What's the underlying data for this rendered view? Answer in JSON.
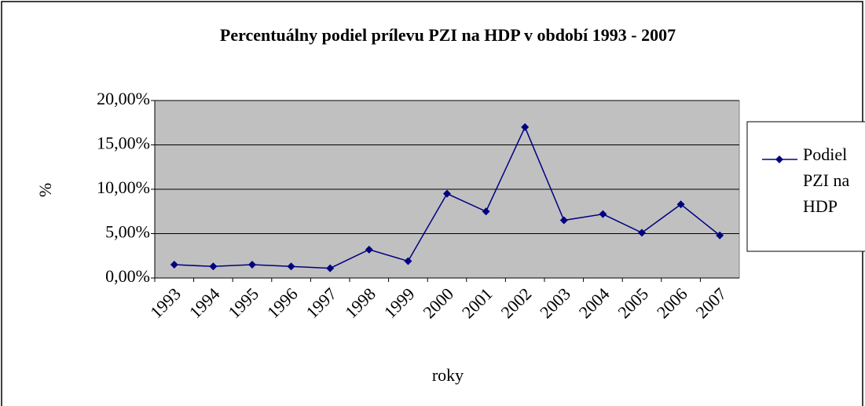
{
  "chart_data": {
    "type": "line",
    "title": "Percentuálny podiel prílevu PZI na HDP v období 1993 - 2007",
    "x_label": "roky",
    "y_label": "%",
    "categories": [
      "1993",
      "1994",
      "1995",
      "1996",
      "1997",
      "1998",
      "1999",
      "2000",
      "2001",
      "2002",
      "2003",
      "2004",
      "2005",
      "2006",
      "2007"
    ],
    "series": [
      {
        "name": "Podiel PZI na HDP",
        "color": "#000080",
        "values": [
          1.5,
          1.3,
          1.5,
          1.3,
          1.1,
          3.2,
          1.9,
          9.5,
          7.5,
          17.0,
          6.5,
          7.2,
          5.1,
          8.3,
          4.8
        ]
      }
    ],
    "ylim": [
      0,
      20
    ],
    "yticks": [
      {
        "value": 0,
        "label": "0,00%"
      },
      {
        "value": 5,
        "label": "5,00%"
      },
      {
        "value": 10,
        "label": "10,00%"
      },
      {
        "value": 15,
        "label": "15,00%"
      },
      {
        "value": 20,
        "label": "20,00%"
      }
    ],
    "grid": true,
    "legend": "right",
    "plot_background": "#c0c0c0"
  }
}
